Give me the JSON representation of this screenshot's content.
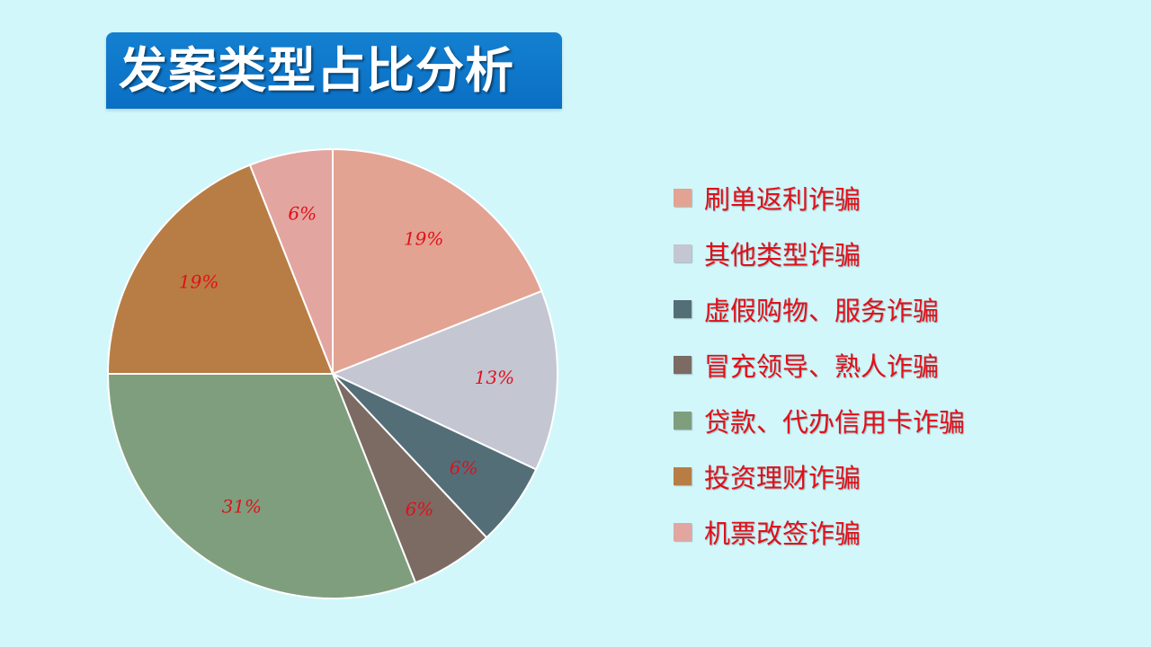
{
  "title": "发案类型占比分析",
  "colors": {
    "background": "#d1f7fb",
    "banner": "#0a6fc4",
    "label_text": "#e0101a"
  },
  "chart_data": {
    "type": "pie",
    "start_angle_deg": 0,
    "direction": "clockwise",
    "slices": [
      {
        "name": "刷单返利诈骗",
        "value": 19,
        "label": "19%",
        "color": "#e3a392"
      },
      {
        "name": "其他类型诈骗",
        "value": 13,
        "label": "13%",
        "color": "#c4c6d2"
      },
      {
        "name": "虚假购物、服务诈骗",
        "value": 6,
        "label": "6%",
        "color": "#546e78"
      },
      {
        "name": "冒充领导、熟人诈骗",
        "value": 6,
        "label": "6%",
        "color": "#7b6b63"
      },
      {
        "name": "贷款、代办信用卡诈骗",
        "value": 31,
        "label": "31%",
        "color": "#7f9e7d"
      },
      {
        "name": "投资理财诈骗",
        "value": 19,
        "label": "19%",
        "color": "#b87d44"
      },
      {
        "name": "机票改签诈骗",
        "value": 6,
        "label": "6%",
        "color": "#e3a5a0"
      }
    ],
    "legend_position": "right"
  }
}
